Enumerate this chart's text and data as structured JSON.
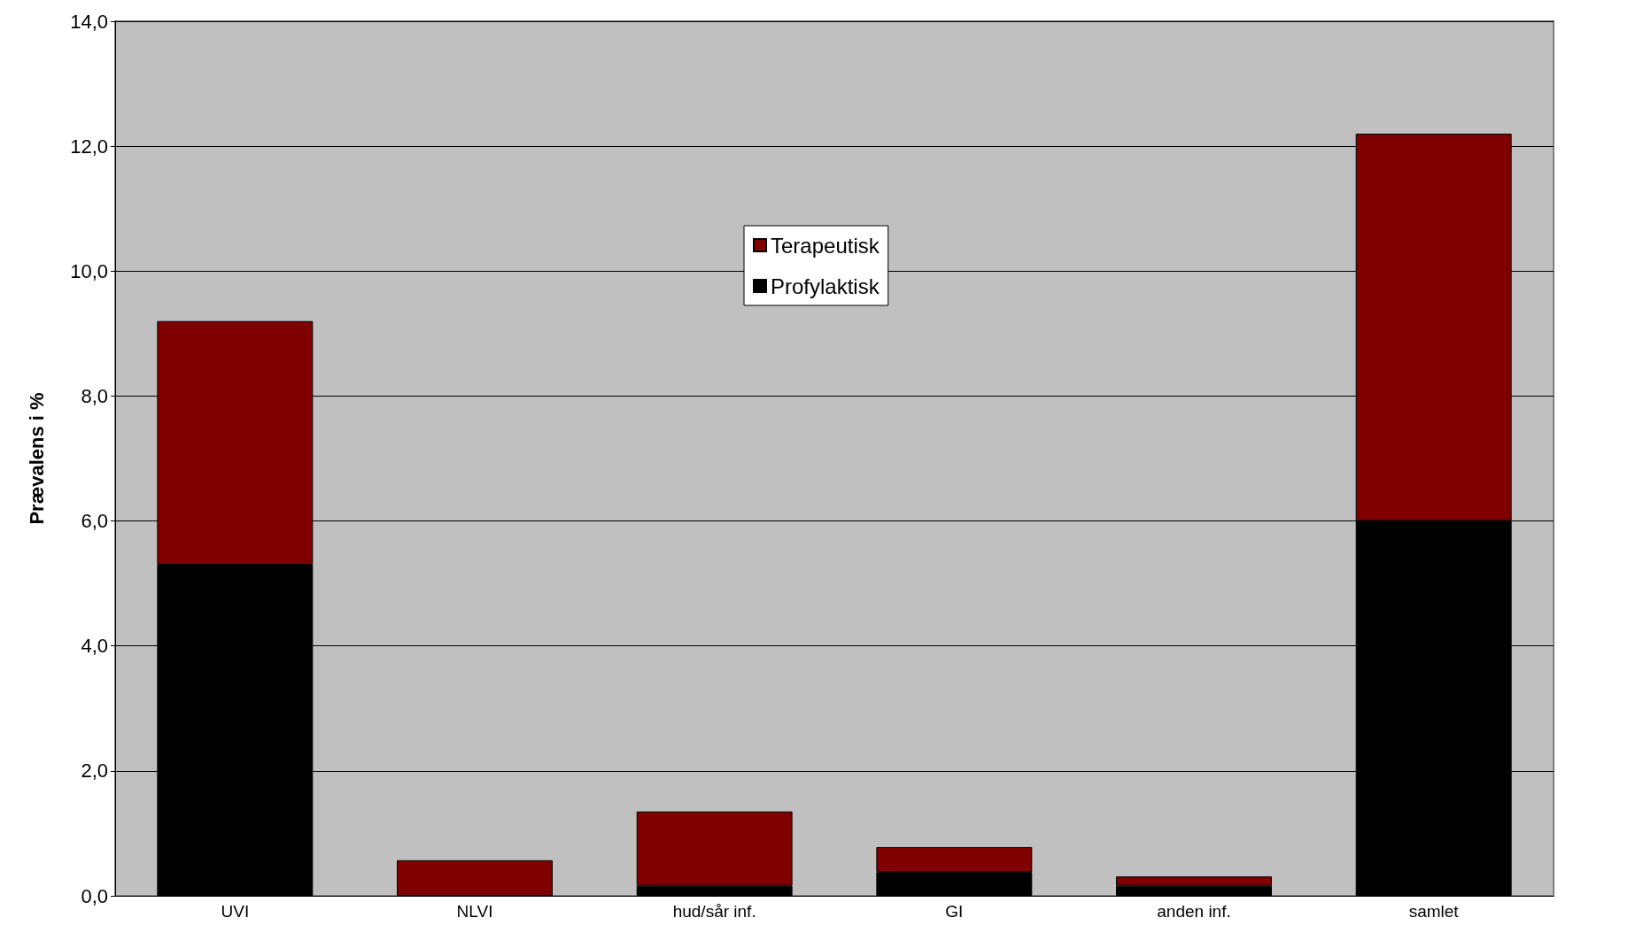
{
  "chart_data": {
    "type": "bar",
    "stacked": true,
    "ylabel": "Prævalens i %",
    "categories": [
      "UVI",
      "NLVI",
      "hud/sår inf.",
      "GI",
      "anden inf.",
      "samlet"
    ],
    "series": [
      {
        "name": "Profylaktisk",
        "color": "#000000",
        "values": [
          5.3,
          0,
          0.16,
          0.38,
          0.16,
          6.0
        ]
      },
      {
        "name": "Terapeutisk",
        "color": "#800000",
        "values": [
          3.9,
          0.57,
          1.19,
          0.4,
          0.15,
          6.2
        ]
      }
    ],
    "ylim": [
      0,
      14
    ],
    "yticks": [
      {
        "value": 0,
        "label": "0,0"
      },
      {
        "value": 2,
        "label": "2,0"
      },
      {
        "value": 4,
        "label": "4,0"
      },
      {
        "value": 6,
        "label": "6,0"
      },
      {
        "value": 8,
        "label": "8,0"
      },
      {
        "value": 10,
        "label": "10,0"
      },
      {
        "value": 12,
        "label": "12,0"
      },
      {
        "value": 14,
        "label": "14,0"
      }
    ],
    "grid": "y",
    "legend": "top center"
  }
}
